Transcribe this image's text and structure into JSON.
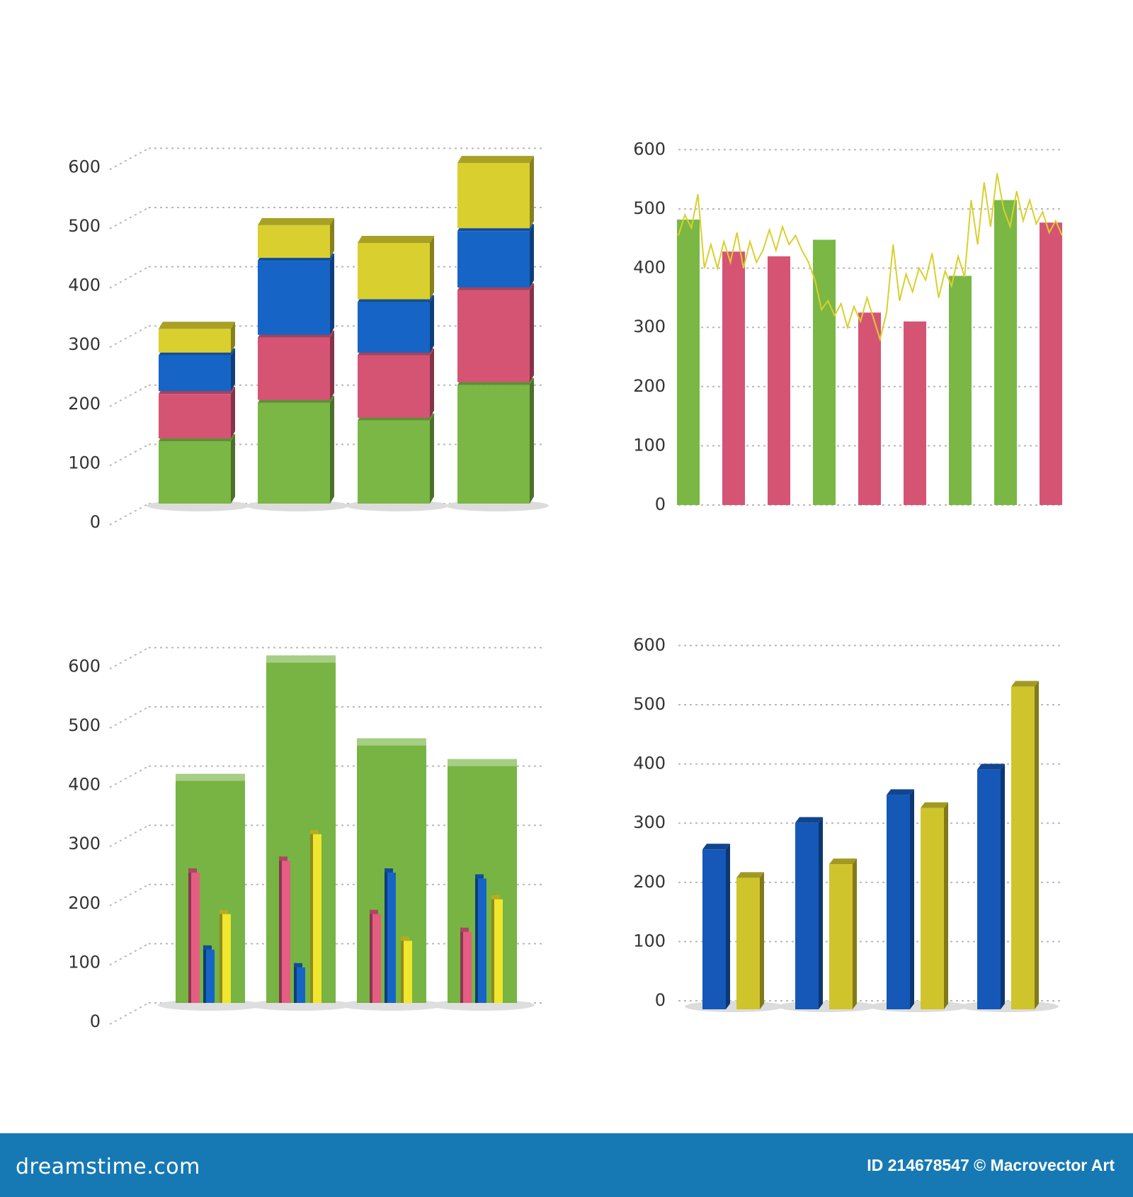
{
  "chart_data": [
    {
      "type": "bar",
      "subtype": "stacked-3d",
      "y_ticks": [
        "0",
        "100",
        "200",
        "300",
        "400",
        "500",
        "600"
      ],
      "ylim": [
        0,
        600
      ],
      "grid": true,
      "series": [
        {
          "color": "#7ab744",
          "values": [
            110,
            175,
            145,
            205
          ]
        },
        {
          "color": "#d55474",
          "values": [
            80,
            110,
            110,
            160
          ]
        },
        {
          "color": "#1665c6",
          "values": [
            65,
            130,
            90,
            100
          ]
        },
        {
          "color": "#d9cf2f",
          "values": [
            45,
            60,
            100,
            115
          ]
        }
      ]
    },
    {
      "type": "bar",
      "subtype": "bars-with-line",
      "y_ticks": [
        "0",
        "100",
        "200",
        "300",
        "400",
        "500",
        "600"
      ],
      "ylim": [
        0,
        600
      ],
      "grid": true,
      "values": [
        482,
        428,
        420,
        448,
        325,
        310,
        387,
        515,
        477
      ],
      "colors": [
        "#7ab744",
        "#d55474",
        "#d55474",
        "#7ab744",
        "#d55474",
        "#d55474",
        "#7ab744",
        "#7ab744",
        "#d55474"
      ],
      "line": {
        "color": "#d9cf2f",
        "values": [
          455,
          490,
          468,
          525,
          400,
          440,
          400,
          445,
          410,
          460,
          400,
          445,
          410,
          430,
          465,
          430,
          470,
          440,
          455,
          430,
          410,
          380,
          330,
          345,
          320,
          340,
          300,
          335,
          310,
          350,
          315,
          280,
          325,
          440,
          345,
          390,
          360,
          400,
          380,
          425,
          350,
          395,
          370,
          420,
          385,
          515,
          440,
          545,
          470,
          560,
          500,
          470,
          530,
          480,
          515,
          475,
          495,
          460,
          480,
          455
        ]
      }
    },
    {
      "type": "bar",
      "subtype": "grouped-inside-background",
      "y_ticks": [
        "0",
        "100",
        "200",
        "300",
        "400",
        "500",
        "600"
      ],
      "ylim": [
        0,
        600
      ],
      "grid": true,
      "background": {
        "color": "#77b443",
        "values": [
          375,
          575,
          435,
          400
        ]
      },
      "series": [
        {
          "color": "#e55d83",
          "values": [
            220,
            240,
            150,
            120
          ]
        },
        {
          "color": "#1665c6",
          "values": [
            90,
            60,
            220,
            210
          ]
        },
        {
          "color": "#f0e62e",
          "values": [
            150,
            285,
            105,
            175
          ]
        }
      ]
    },
    {
      "type": "bar",
      "subtype": "grouped-3d",
      "y_ticks": [
        "0",
        "100",
        "200",
        "300",
        "400",
        "500",
        "600"
      ],
      "ylim": [
        0,
        600
      ],
      "grid": true,
      "series": [
        {
          "color": "#1558b7",
          "values": [
            270,
            315,
            362,
            405
          ]
        },
        {
          "color": "#d0c42c",
          "values": [
            222,
            245,
            340,
            545
          ]
        }
      ]
    }
  ],
  "footer": {
    "logo": "dreamstime.com",
    "credit": "ID 214678547 © Macrovector Art"
  }
}
